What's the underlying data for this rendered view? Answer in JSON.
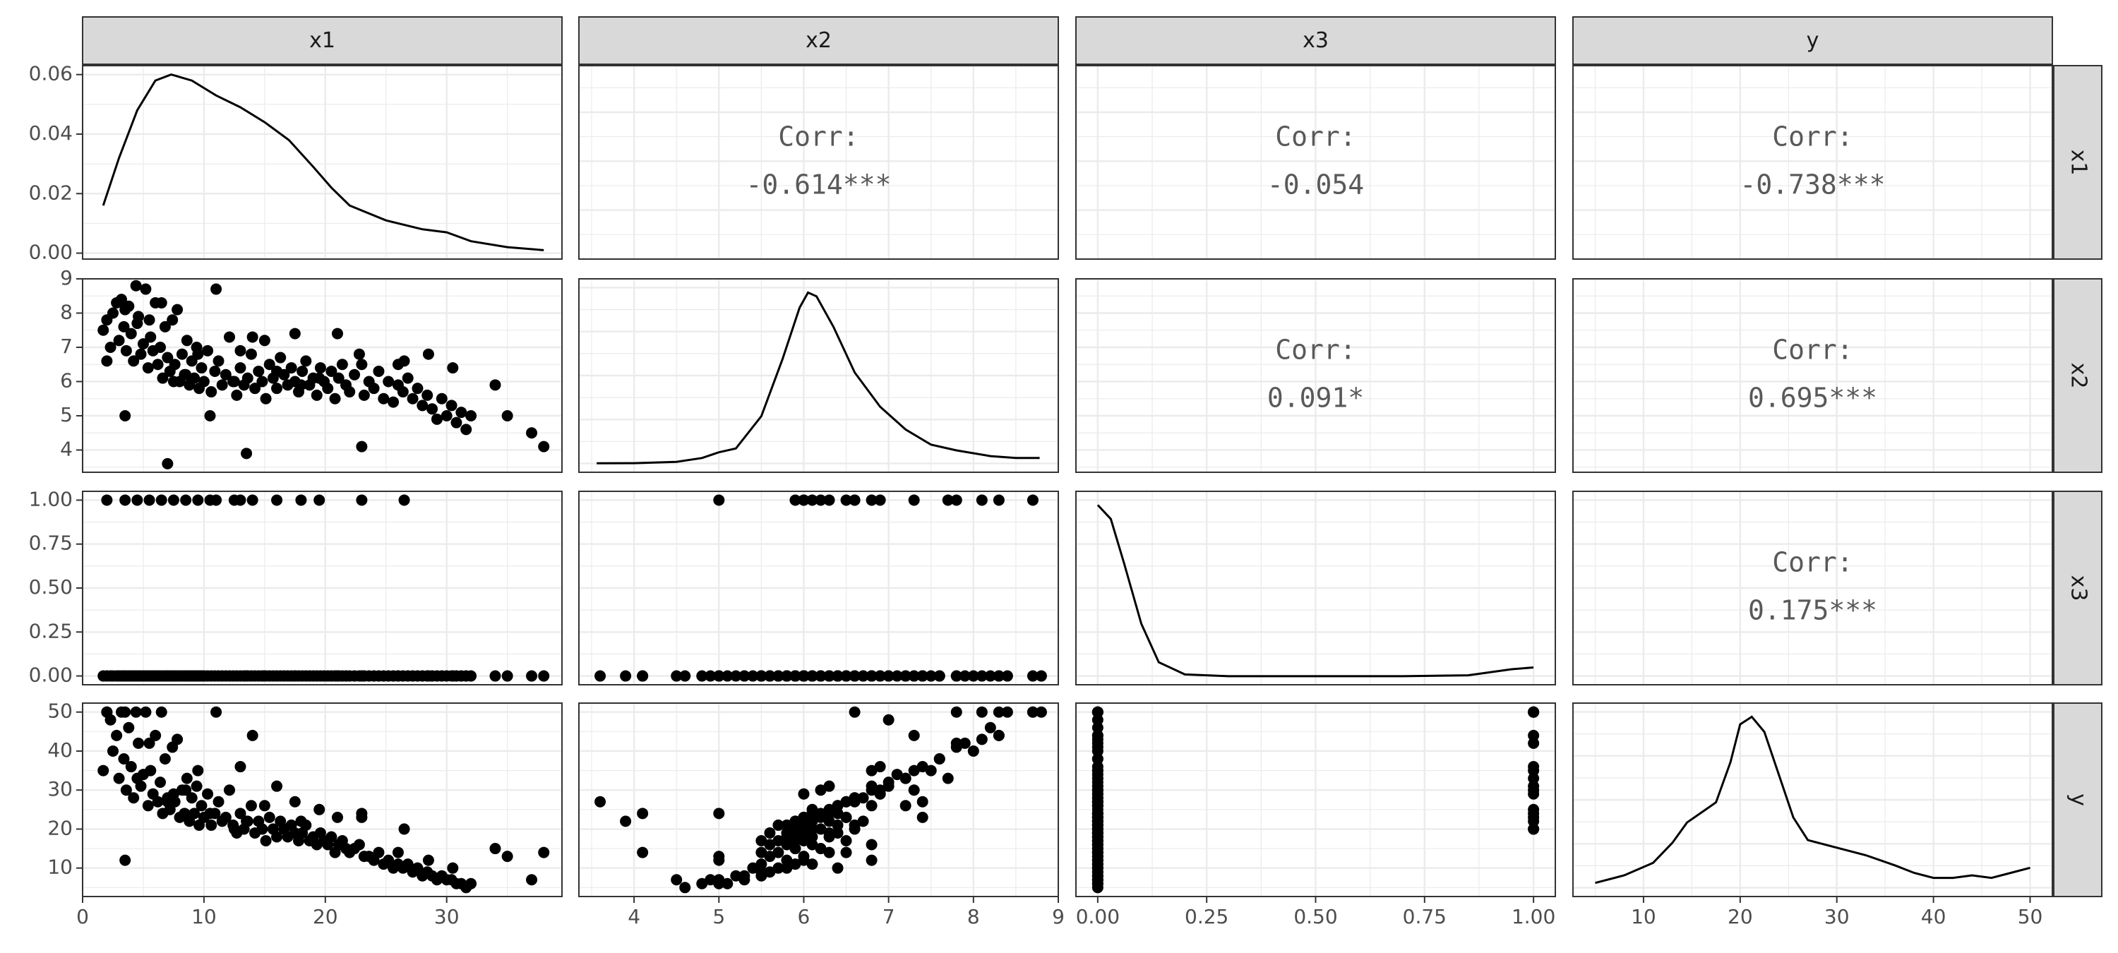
{
  "chart_data": {
    "type": "scatter",
    "variables": [
      "x1",
      "x2",
      "x3",
      "y"
    ],
    "grid": true,
    "axes": {
      "x1": {
        "range": [
          0,
          39.5
        ],
        "ticks": [
          0,
          10,
          20,
          30
        ],
        "tick_labels": [
          "0",
          "10",
          "20",
          "30"
        ],
        "density_range": [
          -0.002,
          0.063
        ],
        "density_ticks": [
          0,
          0.02,
          0.04,
          0.06
        ],
        "density_tick_labels": [
          "0.00",
          "0.02",
          "0.04",
          "0.06"
        ]
      },
      "x2": {
        "range": [
          3.35,
          9.0
        ],
        "ticks": [
          4,
          5,
          6,
          7,
          8,
          9
        ],
        "tick_labels": [
          "4",
          "5",
          "6",
          "7",
          "8",
          "9"
        ]
      },
      "x3": {
        "range": [
          -0.05,
          1.05
        ],
        "ticks": [
          0,
          0.25,
          0.5,
          0.75,
          1.0
        ],
        "tick_labels": [
          "0.00",
          "0.25",
          "0.50",
          "0.75",
          "1.00"
        ]
      },
      "y": {
        "range": [
          2.7,
          52.3
        ],
        "ticks": [
          10,
          20,
          30,
          40,
          50
        ],
        "tick_labels": [
          "10",
          "20",
          "30",
          "40",
          "50"
        ]
      }
    },
    "correlations": [
      {
        "row": "x1",
        "col": "x2",
        "label": "Corr:",
        "value": "-0.614***"
      },
      {
        "row": "x1",
        "col": "x3",
        "label": "Corr:",
        "value": "-0.054"
      },
      {
        "row": "x1",
        "col": "y",
        "label": "Corr:",
        "value": "-0.738***"
      },
      {
        "row": "x2",
        "col": "x3",
        "label": "Corr:",
        "value": "0.091*"
      },
      {
        "row": "x2",
        "col": "y",
        "label": "Corr:",
        "value": "0.695***"
      },
      {
        "row": "x3",
        "col": "y",
        "label": "Corr:",
        "value": "0.175***"
      }
    ],
    "densities": {
      "x1": [
        [
          1.7,
          0.016
        ],
        [
          3,
          0.032
        ],
        [
          4.5,
          0.048
        ],
        [
          6,
          0.058
        ],
        [
          7.3,
          0.06
        ],
        [
          9,
          0.058
        ],
        [
          11,
          0.053
        ],
        [
          13,
          0.049
        ],
        [
          15,
          0.044
        ],
        [
          17,
          0.038
        ],
        [
          19,
          0.029
        ],
        [
          20.5,
          0.022
        ],
        [
          22,
          0.016
        ],
        [
          25,
          0.011
        ],
        [
          28,
          0.008
        ],
        [
          30,
          0.007
        ],
        [
          32,
          0.004
        ],
        [
          35,
          0.002
        ],
        [
          38,
          0.001
        ]
      ],
      "x2": [
        [
          3.56,
          0.002
        ],
        [
          4.0,
          0.003
        ],
        [
          4.5,
          0.01
        ],
        [
          4.8,
          0.03
        ],
        [
          5.0,
          0.06
        ],
        [
          5.2,
          0.08
        ],
        [
          5.5,
          0.25
        ],
        [
          5.75,
          0.55
        ],
        [
          5.95,
          0.82
        ],
        [
          6.05,
          0.9
        ],
        [
          6.15,
          0.88
        ],
        [
          6.35,
          0.72
        ],
        [
          6.6,
          0.48
        ],
        [
          6.9,
          0.3
        ],
        [
          7.2,
          0.18
        ],
        [
          7.5,
          0.1
        ],
        [
          7.8,
          0.07
        ],
        [
          8.2,
          0.04
        ],
        [
          8.5,
          0.03
        ],
        [
          8.78,
          0.03
        ]
      ],
      "x3": [
        [
          0,
          0.98
        ],
        [
          0.03,
          0.9
        ],
        [
          0.06,
          0.65
        ],
        [
          0.1,
          0.3
        ],
        [
          0.14,
          0.08
        ],
        [
          0.2,
          0.01
        ],
        [
          0.3,
          0
        ],
        [
          0.7,
          0
        ],
        [
          0.85,
          0.005
        ],
        [
          0.95,
          0.04
        ],
        [
          1.0,
          0.05
        ]
      ],
      "y": [
        [
          5,
          0.02
        ],
        [
          8,
          0.05
        ],
        [
          11,
          0.1
        ],
        [
          13,
          0.18
        ],
        [
          14.5,
          0.26
        ],
        [
          16,
          0.3
        ],
        [
          17.5,
          0.34
        ],
        [
          19,
          0.5
        ],
        [
          20,
          0.65
        ],
        [
          21.2,
          0.68
        ],
        [
          22.5,
          0.62
        ],
        [
          24,
          0.45
        ],
        [
          25.5,
          0.28
        ],
        [
          27,
          0.19
        ],
        [
          30,
          0.16
        ],
        [
          33,
          0.13
        ],
        [
          36,
          0.09
        ],
        [
          38,
          0.06
        ],
        [
          40,
          0.04
        ],
        [
          42,
          0.04
        ],
        [
          44,
          0.05
        ],
        [
          46,
          0.04
        ],
        [
          48,
          0.06
        ],
        [
          50,
          0.08
        ]
      ]
    },
    "observations": [
      [
        1.7,
        7.5,
        0,
        35
      ],
      [
        2,
        7.8,
        0,
        50
      ],
      [
        2.3,
        7.0,
        0,
        48
      ],
      [
        2.5,
        8.0,
        0,
        40
      ],
      [
        2.8,
        8.3,
        0,
        44
      ],
      [
        3.0,
        7.2,
        0,
        33
      ],
      [
        3.2,
        8.4,
        0,
        50
      ],
      [
        3.4,
        7.6,
        0,
        38
      ],
      [
        3.6,
        6.9,
        0,
        30
      ],
      [
        3.8,
        8.2,
        0,
        46
      ],
      [
        4.0,
        7.4,
        0,
        36
      ],
      [
        4.2,
        6.6,
        0,
        28
      ],
      [
        4.4,
        8.8,
        0,
        50
      ],
      [
        4.6,
        7.9,
        0,
        42
      ],
      [
        4.8,
        6.8,
        0,
        31
      ],
      [
        5.0,
        7.1,
        0,
        34
      ],
      [
        5.2,
        8.7,
        0,
        50
      ],
      [
        5.4,
        6.4,
        0,
        26
      ],
      [
        5.6,
        7.3,
        0,
        35
      ],
      [
        5.8,
        6.9,
        0,
        29
      ],
      [
        6.0,
        8.3,
        0,
        44
      ],
      [
        6.2,
        6.5,
        0,
        27
      ],
      [
        6.4,
        7.0,
        0,
        32
      ],
      [
        6.6,
        6.1,
        0,
        24
      ],
      [
        6.8,
        7.6,
        0,
        38
      ],
      [
        7.0,
        6.7,
        0,
        28
      ],
      [
        7.2,
        6.3,
        0,
        25
      ],
      [
        7.4,
        7.8,
        0,
        41
      ],
      [
        7.6,
        6.5,
        0,
        27
      ],
      [
        7.8,
        8.1,
        0,
        43
      ],
      [
        8.0,
        6.0,
        0,
        23
      ],
      [
        8.2,
        6.8,
        0,
        30
      ],
      [
        8.4,
        6.2,
        0,
        24
      ],
      [
        8.6,
        7.2,
        0,
        33
      ],
      [
        8.8,
        5.9,
        0,
        22
      ],
      [
        9.0,
        6.6,
        0,
        28
      ],
      [
        9.2,
        6.1,
        0,
        24
      ],
      [
        9.4,
        7.0,
        0,
        31
      ],
      [
        9.6,
        5.8,
        0,
        21
      ],
      [
        9.8,
        6.4,
        0,
        26
      ],
      [
        10.0,
        6.0,
        0,
        23
      ],
      [
        10.3,
        6.9,
        0,
        29
      ],
      [
        10.6,
        5.7,
        0,
        21
      ],
      [
        10.9,
        6.3,
        0,
        24
      ],
      [
        11.2,
        6.6,
        0,
        27
      ],
      [
        11.5,
        5.9,
        0,
        22
      ],
      [
        11.8,
        6.2,
        0,
        23
      ],
      [
        12.1,
        7.3,
        0,
        30
      ],
      [
        12.4,
        6.0,
        0,
        21
      ],
      [
        12.7,
        5.6,
        0,
        19
      ],
      [
        13.0,
        6.4,
        0,
        24
      ],
      [
        13.3,
        5.9,
        0,
        20
      ],
      [
        13.6,
        6.1,
        0,
        22
      ],
      [
        13.9,
        6.8,
        0,
        26
      ],
      [
        14.2,
        5.8,
        0,
        19
      ],
      [
        14.5,
        6.3,
        0,
        22
      ],
      [
        14.8,
        6.0,
        0,
        20
      ],
      [
        15.1,
        5.5,
        0,
        17
      ],
      [
        15.4,
        6.5,
        0,
        23
      ],
      [
        15.7,
        6.1,
        0,
        20
      ],
      [
        16.0,
        5.8,
        0,
        18
      ],
      [
        16.3,
        6.7,
        0,
        22
      ],
      [
        16.6,
        6.2,
        0,
        20
      ],
      [
        16.9,
        5.9,
        0,
        18
      ],
      [
        17.2,
        6.4,
        0,
        21
      ],
      [
        17.5,
        6.0,
        0,
        19
      ],
      [
        17.8,
        5.7,
        0,
        17
      ],
      [
        18.1,
        6.3,
        0,
        19
      ],
      [
        18.4,
        6.6,
        0,
        21
      ],
      [
        18.7,
        5.9,
        0,
        17
      ],
      [
        19.0,
        6.1,
        0,
        18
      ],
      [
        19.3,
        5.6,
        0,
        16
      ],
      [
        19.6,
        6.4,
        0,
        19
      ],
      [
        19.9,
        6.0,
        0,
        17
      ],
      [
        20.2,
        5.8,
        0,
        16
      ],
      [
        20.5,
        6.3,
        0,
        18
      ],
      [
        20.8,
        5.5,
        0,
        14
      ],
      [
        21.1,
        6.1,
        0,
        16
      ],
      [
        21.4,
        6.5,
        0,
        17
      ],
      [
        21.7,
        5.9,
        0,
        15
      ],
      [
        22.0,
        5.7,
        0,
        14
      ],
      [
        22.4,
        6.2,
        0,
        15
      ],
      [
        22.8,
        6.8,
        0,
        16
      ],
      [
        23.2,
        5.6,
        0,
        13
      ],
      [
        23.6,
        6.0,
        0,
        13
      ],
      [
        24.0,
        5.8,
        0,
        12
      ],
      [
        24.4,
        6.3,
        0,
        14
      ],
      [
        24.8,
        5.5,
        0,
        11
      ],
      [
        25.2,
        6.0,
        0,
        12
      ],
      [
        25.6,
        5.4,
        0,
        10
      ],
      [
        26.0,
        5.9,
        0,
        11
      ],
      [
        26.4,
        5.7,
        0,
        10
      ],
      [
        26.8,
        6.1,
        0,
        11
      ],
      [
        27.2,
        5.5,
        0,
        9
      ],
      [
        27.6,
        5.8,
        0,
        10
      ],
      [
        28.0,
        5.3,
        0,
        8
      ],
      [
        28.4,
        5.6,
        0,
        9
      ],
      [
        28.8,
        5.2,
        0,
        8
      ],
      [
        29.2,
        4.9,
        0,
        7
      ],
      [
        29.6,
        5.5,
        0,
        8
      ],
      [
        30.0,
        5.0,
        0,
        7
      ],
      [
        30.4,
        5.3,
        0,
        7
      ],
      [
        30.8,
        4.8,
        0,
        6
      ],
      [
        31.2,
        5.1,
        0,
        6
      ],
      [
        31.6,
        4.6,
        0,
        5
      ],
      [
        32.0,
        5.0,
        0,
        6
      ],
      [
        3.5,
        5.0,
        0,
        12
      ],
      [
        7.0,
        3.6,
        0,
        27
      ],
      [
        13.5,
        3.9,
        0,
        22
      ],
      [
        23.0,
        4.1,
        0,
        24
      ],
      [
        34.0,
        5.9,
        0,
        15
      ],
      [
        35.0,
        5.0,
        0,
        13
      ],
      [
        37.0,
        4.5,
        0,
        7
      ],
      [
        38.0,
        4.1,
        0,
        14
      ],
      [
        30.5,
        6.4,
        0,
        10
      ],
      [
        28.5,
        6.8,
        0,
        12
      ],
      [
        26.0,
        6.5,
        0,
        14
      ],
      [
        21.0,
        7.4,
        0,
        23
      ],
      [
        17.5,
        7.4,
        0,
        27
      ],
      [
        15.0,
        7.2,
        0,
        26
      ],
      [
        2.0,
        6.6,
        1,
        50
      ],
      [
        3.5,
        8.1,
        1,
        50
      ],
      [
        4.5,
        7.7,
        1,
        33
      ],
      [
        5.5,
        7.8,
        1,
        42
      ],
      [
        6.5,
        8.3,
        1,
        50
      ],
      [
        8.5,
        6.2,
        1,
        30
      ],
      [
        10.5,
        5.0,
        1,
        24
      ],
      [
        12.5,
        6.0,
        1,
        20
      ],
      [
        14.0,
        7.3,
        1,
        44
      ],
      [
        16.0,
        6.3,
        1,
        31
      ],
      [
        18.0,
        5.9,
        1,
        22
      ],
      [
        19.5,
        6.1,
        1,
        25
      ],
      [
        23.0,
        6.5,
        1,
        23
      ],
      [
        26.5,
        6.6,
        1,
        20
      ],
      [
        9.5,
        6.8,
        1,
        35
      ],
      [
        11.0,
        8.7,
        1,
        50
      ],
      [
        7.5,
        6.0,
        1,
        29
      ],
      [
        13.0,
        6.9,
        1,
        36
      ]
    ]
  }
}
